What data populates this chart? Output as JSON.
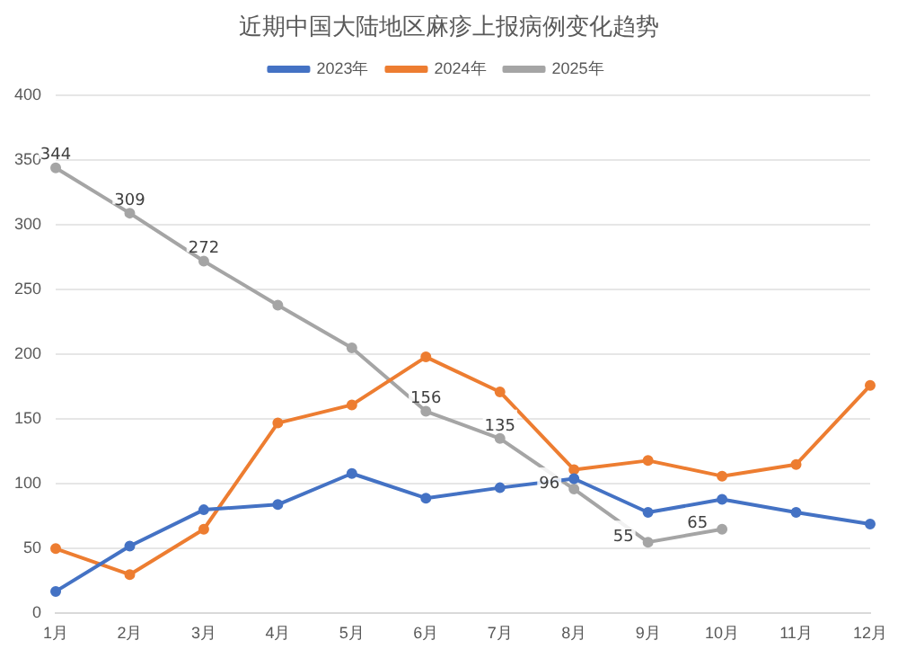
{
  "chart_data": {
    "type": "line",
    "title": "近期中国大陆地区麻疹上报病例变化趋势",
    "categories": [
      "1月",
      "2月",
      "3月",
      "4月",
      "5月",
      "6月",
      "7月",
      "8月",
      "9月",
      "10月",
      "11月",
      "12月"
    ],
    "series": [
      {
        "name": "2023年",
        "color": "#4472c4",
        "values": [
          17,
          52,
          80,
          84,
          108,
          89,
          97,
          104,
          78,
          88,
          78,
          69
        ]
      },
      {
        "name": "2024年",
        "color": "#ed7d31",
        "values": [
          50,
          30,
          65,
          147,
          161,
          198,
          171,
          111,
          118,
          106,
          115,
          176
        ]
      },
      {
        "name": "2025年",
        "color": "#a5a5a5",
        "values": [
          344,
          309,
          272,
          238,
          205,
          156,
          135,
          96,
          55,
          65,
          null,
          null
        ],
        "value_labels": [
          "344",
          "309",
          "272",
          null,
          null,
          "156",
          "135",
          "96",
          "55",
          "65",
          null,
          null
        ]
      }
    ],
    "ylim": [
      0,
      400
    ],
    "yticks": [
      0,
      50,
      100,
      150,
      200,
      250,
      300,
      350,
      400
    ],
    "grid": "y",
    "legend": "top",
    "marker": "circle",
    "line_style": "solid"
  }
}
